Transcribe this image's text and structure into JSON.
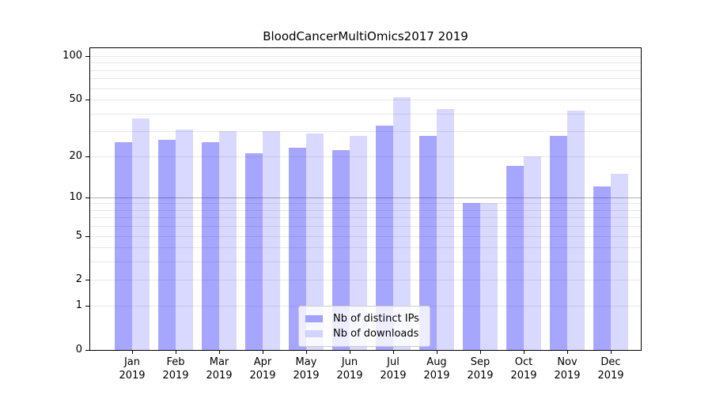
{
  "figure": {
    "background": "#ffffff",
    "spine_color": "#000000"
  },
  "chart_data": {
    "type": "bar",
    "title": "BloodCancerMultiOmics2017 2019",
    "categories": [
      "Jan 2019",
      "Feb 2019",
      "Mar 2019",
      "Apr 2019",
      "May 2019",
      "Jun 2019",
      "Jul 2019",
      "Aug 2019",
      "Sep 2019",
      "Oct 2019",
      "Nov 2019",
      "Dec 2019"
    ],
    "x_tick_months": [
      "Jan",
      "Feb",
      "Mar",
      "Apr",
      "May",
      "Jun",
      "Jul",
      "Aug",
      "Sep",
      "Oct",
      "Nov",
      "Dec"
    ],
    "x_tick_year": "2019",
    "series": [
      {
        "name": "Nb of distinct IPs",
        "color": "rgba(0,0,255,0.35)",
        "rendered_hex": "#a9a9f7",
        "values": [
          25,
          26,
          25,
          21,
          23,
          22,
          33,
          28,
          9,
          17,
          28,
          12
        ]
      },
      {
        "name": "Nb of downloads",
        "color": "rgba(0,0,255,0.15)",
        "rendered_hex": "#d9d9fa",
        "values": [
          37,
          31,
          30,
          30,
          29,
          28,
          52,
          43,
          9,
          20,
          42,
          15
        ]
      }
    ],
    "xlabel": "",
    "ylabel": "",
    "yscale": "log1p",
    "ylim": [
      0,
      114
    ],
    "y_tick_labels": [
      "100",
      "50",
      "20",
      "10",
      "5",
      "2",
      "1",
      "0"
    ],
    "y_tick_values": [
      100,
      50,
      20,
      10,
      5,
      2,
      1,
      0
    ],
    "grid_values": [
      1,
      2,
      3,
      4,
      5,
      6,
      7,
      8,
      9,
      10,
      20,
      30,
      40,
      50,
      60,
      70,
      80,
      90,
      100
    ],
    "emphasized_grid_value": 10,
    "grid_color": "#e8e8e8",
    "emphasized_grid_color": "#b3b3b3",
    "grid": "horizontal-only",
    "legend_position": "lower-center-inside"
  }
}
